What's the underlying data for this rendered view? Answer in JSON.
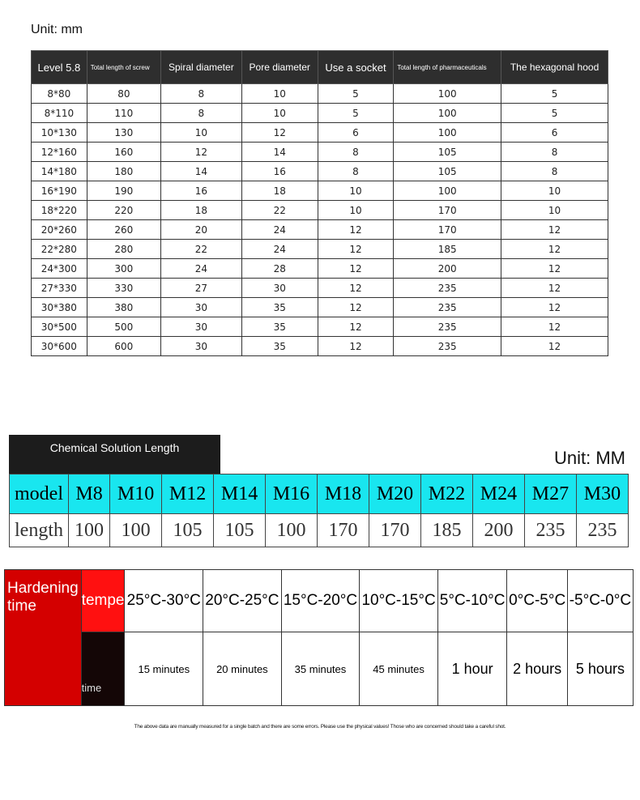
{
  "spec_table": {
    "unit": "Unit: mm",
    "headers": [
      "Level 5.8",
      "Total length of screw",
      "Spiral diameter",
      "Pore diameter",
      "Use a socket",
      "Total length of pharmaceuticals",
      "The hexagonal hood"
    ],
    "rows": [
      [
        "8*80",
        "80",
        "8",
        "10",
        "5",
        "100",
        "5"
      ],
      [
        "8*110",
        "110",
        "8",
        "10",
        "5",
        "100",
        "5"
      ],
      [
        "10*130",
        "130",
        "10",
        "12",
        "6",
        "100",
        "6"
      ],
      [
        "12*160",
        "160",
        "12",
        "14",
        "8",
        "105",
        "8"
      ],
      [
        "14*180",
        "180",
        "14",
        "16",
        "8",
        "105",
        "8"
      ],
      [
        "16*190",
        "190",
        "16",
        "18",
        "10",
        "100",
        "10"
      ],
      [
        "18*220",
        "220",
        "18",
        "22",
        "10",
        "170",
        "10"
      ],
      [
        "20*260",
        "260",
        "20",
        "24",
        "12",
        "170",
        "12"
      ],
      [
        "22*280",
        "280",
        "22",
        "24",
        "12",
        "185",
        "12"
      ],
      [
        "24*300",
        "300",
        "24",
        "28",
        "12",
        "200",
        "12"
      ],
      [
        "27*330",
        "330",
        "27",
        "30",
        "12",
        "235",
        "12"
      ],
      [
        "30*380",
        "380",
        "30",
        "35",
        "12",
        "235",
        "12"
      ],
      [
        "30*500",
        "500",
        "30",
        "35",
        "12",
        "235",
        "12"
      ],
      [
        "30*600",
        "600",
        "30",
        "35",
        "12",
        "235",
        "12"
      ]
    ]
  },
  "chemical_table": {
    "title": "Chemical Solution Length",
    "unit": "Unit: MM",
    "model_label": "model",
    "length_label": "length",
    "models": [
      "M8",
      "M10",
      "M12",
      "M14",
      "M16",
      "M18",
      "M20",
      "M22",
      "M24",
      "M27",
      "M30"
    ],
    "lengths": [
      "100",
      "100",
      "105",
      "105",
      "100",
      "170",
      "170",
      "185",
      "200",
      "235",
      "235"
    ],
    "header_color": "#19e6ef"
  },
  "hardening_table": {
    "label": "Hardening time",
    "temp_label": "tempe",
    "time_label": "time",
    "temps": [
      "25°C-30°C",
      "20°C-25°C",
      "15°C-20°C",
      "10°C-15°C",
      "5°C-10°C",
      "0°C-5°C",
      "-5°C-0°C"
    ],
    "times": [
      "15 minutes",
      "20 minutes",
      "35 minutes",
      "45 minutes",
      "1 hour",
      "2 hours",
      "5 hours"
    ],
    "accent_color": "#d40000"
  },
  "note": "The above data are manually measured for a single batch and there are some errors. Please use the physical values! Those who are concerned should take a careful shot."
}
